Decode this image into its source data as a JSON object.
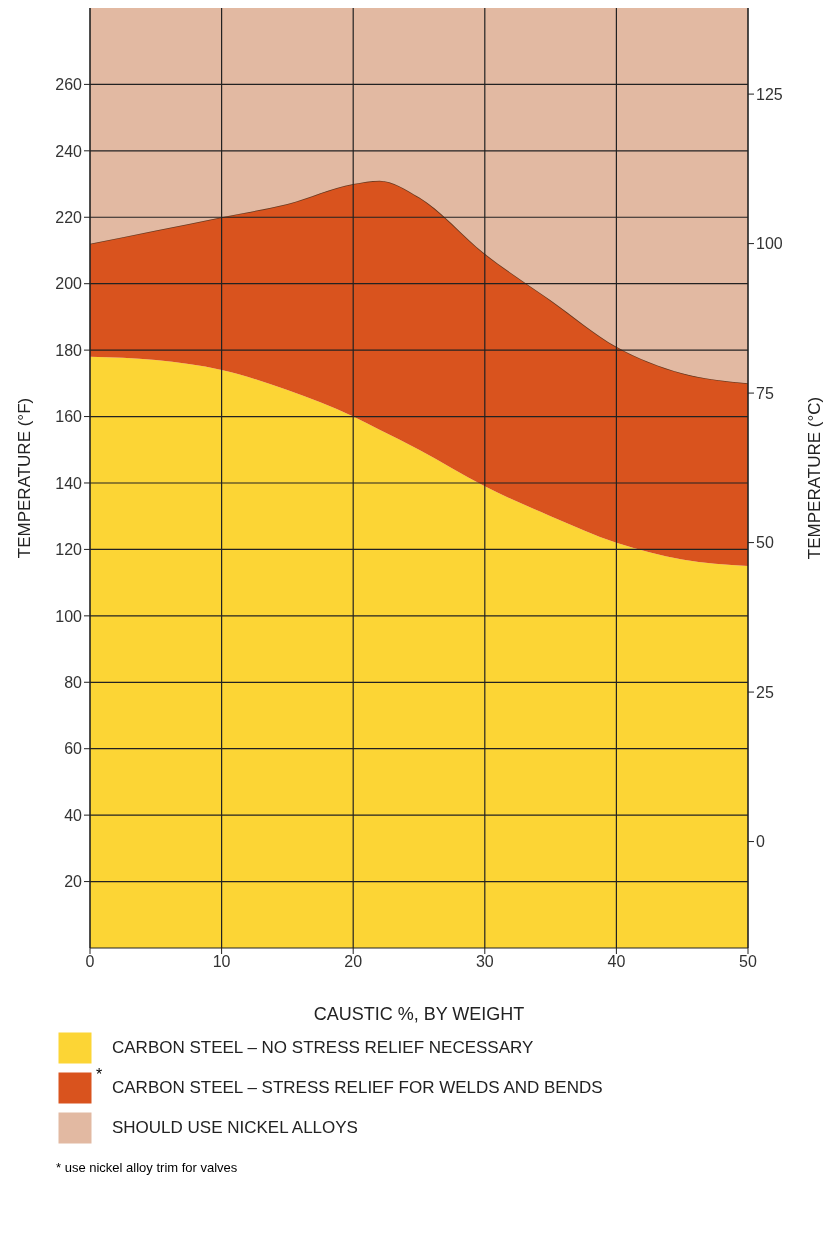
{
  "chart_data": {
    "type": "area",
    "stacked": true,
    "x": [
      0,
      5,
      10,
      15,
      20,
      22,
      25,
      30,
      35,
      40,
      45,
      50
    ],
    "series": [
      {
        "name": "CARBON STEEL – NO STRESS RELIEF NECESSARY",
        "color": "#fcd535",
        "values": [
          178,
          177,
          174,
          168,
          160,
          156,
          150,
          139,
          130,
          122,
          117,
          115
        ]
      },
      {
        "name": "CARBON STEEL – STRESS RELIEF FOR WELDS AND BENDS",
        "color": "#d9531e",
        "values": [
          34,
          39,
          46,
          56,
          70,
          75,
          76,
          70,
          65,
          59,
          56,
          55
        ]
      },
      {
        "name": "SHOULD USE NICKEL ALLOYS",
        "color": "#e2b9a2",
        "values": [
          71,
          67,
          63,
          59,
          53,
          52,
          57,
          74,
          88,
          102,
          110,
          113
        ]
      }
    ],
    "xlabel": "CAUSTIC %,  BY WEIGHT",
    "ylabel": "TEMPERATURE (°F)",
    "y2label": "TEMPERATURE (°C)",
    "xlim": [
      0,
      50
    ],
    "xticks": [
      0,
      10,
      20,
      30,
      40,
      50
    ],
    "ylim": [
      0,
      283
    ],
    "yticks": [
      20,
      40,
      60,
      80,
      100,
      120,
      140,
      160,
      180,
      200,
      220,
      240,
      260
    ],
    "y2lim": [
      -17.8,
      139.4
    ],
    "y2ticks": [
      0,
      25,
      50,
      75,
      100,
      125
    ],
    "grid": true,
    "legend": "bottom",
    "annotations": [
      "*",
      "* use nickel alloy trim for valves"
    ]
  }
}
